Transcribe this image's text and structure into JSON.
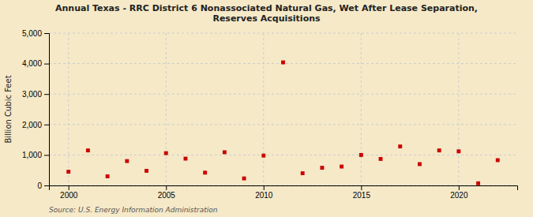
{
  "chart_data": {
    "type": "scatter",
    "title": "Annual Texas - RRC District 6 Nonassociated Natural Gas, Wet After Lease Separation,\nReserves Acquisitions",
    "ylabel": "Billion Cubic Feet",
    "annotation": "Source: U.S. Energy Information Administration",
    "x": [
      2000,
      2001,
      2002,
      2003,
      2004,
      2005,
      2006,
      2007,
      2008,
      2009,
      2010,
      2011,
      2012,
      2013,
      2014,
      2015,
      2016,
      2017,
      2018,
      2019,
      2020,
      2021,
      2022
    ],
    "values": [
      450,
      1150,
      300,
      800,
      480,
      1060,
      880,
      420,
      1090,
      230,
      980,
      4040,
      400,
      580,
      620,
      1000,
      870,
      1280,
      700,
      1150,
      1120,
      70,
      830
    ],
    "color": "#cc0000",
    "marker": "square",
    "grid": true,
    "xlim": [
      1999,
      2023
    ],
    "xticks": [
      2000,
      2005,
      2010,
      2015,
      2020
    ],
    "ylim": [
      0,
      5000
    ],
    "yticks": [
      0,
      {
        "value": 1000,
        "label": "1,000"
      },
      {
        "value": 2000,
        "label": "2,000"
      },
      {
        "value": 3000,
        "label": "3,000"
      },
      {
        "value": 4000,
        "label": "4,000"
      },
      {
        "value": 5000,
        "label": "5,000"
      }
    ]
  }
}
